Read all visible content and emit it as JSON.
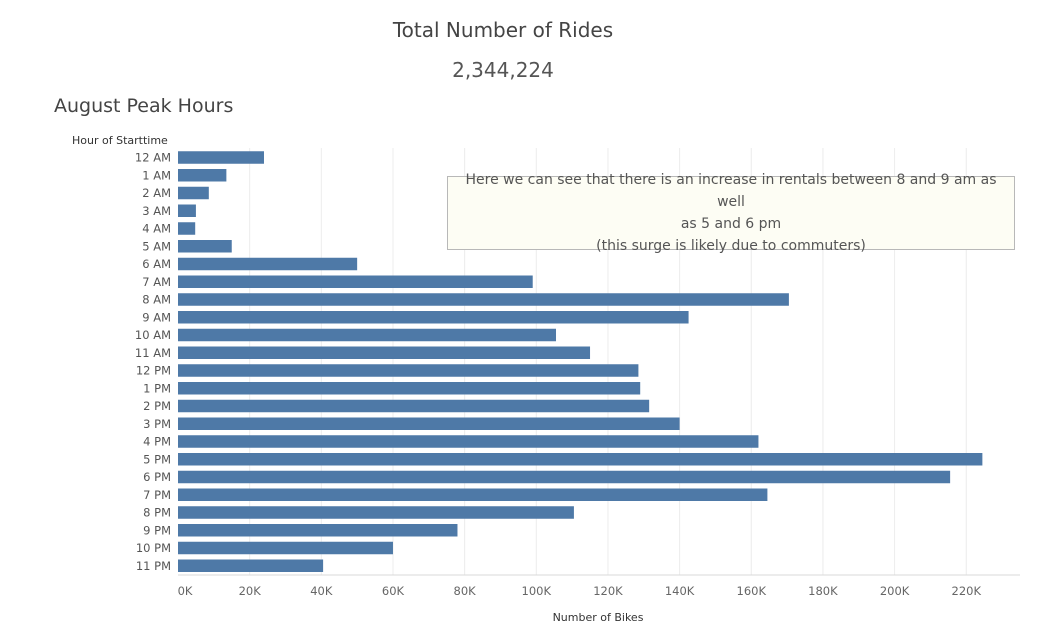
{
  "kpi": {
    "title": "Total Number of Rides",
    "value": "2,344,224"
  },
  "chart_data": {
    "type": "bar",
    "orientation": "horizontal",
    "title": "August Peak Hours",
    "ylabel": "Hour of Starttime",
    "xlabel": "Number of Bikes",
    "categories": [
      "12 AM",
      "1 AM",
      "2 AM",
      "3 AM",
      "4 AM",
      "5 AM",
      "6 AM",
      "7 AM",
      "8 AM",
      "9 AM",
      "10 AM",
      "11 AM",
      "12 PM",
      "1 PM",
      "2 PM",
      "3 PM",
      "4 PM",
      "5 PM",
      "6 PM",
      "7 PM",
      "8 PM",
      "9 PM",
      "10 PM",
      "11 PM"
    ],
    "values": [
      24000,
      13500,
      8600,
      5000,
      4800,
      15000,
      50000,
      99000,
      170500,
      142500,
      105500,
      115000,
      128500,
      129000,
      131500,
      140000,
      162000,
      224500,
      215500,
      164500,
      110500,
      78000,
      60000,
      40500
    ],
    "xlim": [
      0,
      235000
    ],
    "xticks": [
      0,
      20000,
      40000,
      60000,
      80000,
      100000,
      120000,
      140000,
      160000,
      180000,
      200000,
      220000
    ],
    "xtick_labels": [
      "0K",
      "20K",
      "40K",
      "60K",
      "80K",
      "100K",
      "120K",
      "140K",
      "160K",
      "180K",
      "200K",
      "220K"
    ],
    "grid": "vertical",
    "bar_color": "#4e79a7",
    "annotation": "Here we can see that there is an increase in rentals between 8 and 9 am as well\nas 5 and 6 pm\n(this surge is likely due to commuters)"
  }
}
